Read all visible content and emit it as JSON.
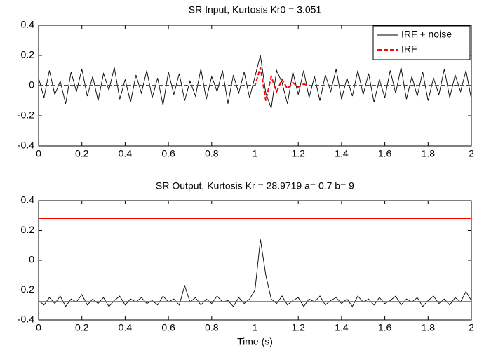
{
  "chart_data": [
    {
      "type": "line",
      "title": "SR Input, Kurtosis Kr0 = 3.051",
      "xlim": [
        0,
        2
      ],
      "xticks": [
        0,
        0.2,
        0.4,
        0.6,
        0.8,
        1,
        1.2,
        1.4,
        1.6,
        1.8,
        2
      ],
      "ylim": [
        -0.4,
        0.4
      ],
      "yticks": [
        -0.4,
        -0.2,
        0,
        0.2,
        0.4
      ],
      "legend": "northeast",
      "x": [
        0,
        0.025,
        0.05,
        0.075,
        0.1,
        0.125,
        0.15,
        0.175,
        0.2,
        0.225,
        0.25,
        0.275,
        0.3,
        0.325,
        0.35,
        0.375,
        0.4,
        0.425,
        0.45,
        0.475,
        0.5,
        0.525,
        0.55,
        0.575,
        0.6,
        0.625,
        0.65,
        0.675,
        0.7,
        0.725,
        0.75,
        0.775,
        0.8,
        0.825,
        0.85,
        0.875,
        0.9,
        0.925,
        0.95,
        0.975,
        1,
        1.025,
        1.05,
        1.075,
        1.1,
        1.125,
        1.15,
        1.175,
        1.2,
        1.225,
        1.25,
        1.275,
        1.3,
        1.325,
        1.35,
        1.375,
        1.4,
        1.425,
        1.45,
        1.475,
        1.5,
        1.525,
        1.55,
        1.575,
        1.6,
        1.625,
        1.65,
        1.675,
        1.7,
        1.725,
        1.75,
        1.775,
        1.8,
        1.825,
        1.85,
        1.875,
        1.9,
        1.925,
        1.95,
        1.975,
        2
      ],
      "series": [
        {
          "name": "IRF + noise",
          "color": "#000000",
          "dash": false,
          "values": [
            0.05,
            -0.08,
            0.1,
            -0.06,
            0.03,
            -0.12,
            0.09,
            -0.04,
            0.11,
            -0.07,
            0.06,
            -0.1,
            0.08,
            -0.03,
            0.12,
            -0.09,
            0.04,
            -0.11,
            0.07,
            -0.05,
            0.1,
            -0.08,
            0.05,
            -0.13,
            0.09,
            -0.06,
            0.08,
            -0.1,
            0.03,
            -0.07,
            0.11,
            -0.09,
            0.06,
            -0.04,
            0.1,
            -0.12,
            0.07,
            -0.05,
            0.09,
            -0.08,
            0.06,
            0.2,
            -0.05,
            -0.15,
            0.1,
            0.02,
            -0.12,
            0.09,
            -0.06,
            0.1,
            -0.08,
            0.06,
            -0.1,
            0.07,
            -0.04,
            0.11,
            -0.09,
            0.05,
            -0.07,
            0.1,
            -0.06,
            0.08,
            -0.11,
            0.04,
            -0.08,
            0.1,
            -0.05,
            0.12,
            -0.09,
            0.06,
            -0.07,
            0.09,
            -0.1,
            0.05,
            -0.06,
            0.11,
            -0.08,
            0.07,
            -0.04,
            0.1,
            -0.09
          ]
        },
        {
          "name": "IRF",
          "color": "#ff0000",
          "dash": true,
          "values": [
            0,
            0,
            0,
            0,
            0,
            0,
            0,
            0,
            0,
            0,
            0,
            0,
            0,
            0,
            0,
            0,
            0,
            0,
            0,
            0,
            0,
            0,
            0,
            0,
            0,
            0,
            0,
            0,
            0,
            0,
            0,
            0,
            0,
            0,
            0,
            0,
            0,
            0,
            0,
            0,
            0,
            0.12,
            -0.1,
            0.06,
            -0.04,
            0.04,
            -0.02,
            0.02,
            -0.01,
            0.01,
            0,
            0,
            0,
            0,
            0,
            0,
            0,
            0,
            0,
            0,
            0,
            0,
            0,
            0,
            0,
            0,
            0,
            0,
            0,
            0,
            0,
            0,
            0,
            0,
            0,
            0,
            0,
            0,
            0,
            0,
            0
          ]
        }
      ]
    },
    {
      "type": "line",
      "title": "SR Output, Kurtosis Kr = 28.9719    a= 0.7   b= 9",
      "xlabel": "Time (s)",
      "xlim": [
        0,
        2
      ],
      "xticks": [
        0,
        0.2,
        0.4,
        0.6,
        0.8,
        1,
        1.2,
        1.4,
        1.6,
        1.8,
        2
      ],
      "ylim": [
        -0.4,
        0.4
      ],
      "yticks": [
        -0.4,
        -0.2,
        0,
        0.2,
        0.4
      ],
      "x": [
        0,
        0.025,
        0.05,
        0.075,
        0.1,
        0.125,
        0.15,
        0.175,
        0.2,
        0.225,
        0.25,
        0.275,
        0.3,
        0.325,
        0.35,
        0.375,
        0.4,
        0.425,
        0.45,
        0.475,
        0.5,
        0.525,
        0.55,
        0.575,
        0.6,
        0.625,
        0.65,
        0.675,
        0.7,
        0.725,
        0.75,
        0.775,
        0.8,
        0.825,
        0.85,
        0.875,
        0.9,
        0.925,
        0.95,
        0.975,
        1,
        1.025,
        1.05,
        1.075,
        1.1,
        1.125,
        1.15,
        1.175,
        1.2,
        1.225,
        1.25,
        1.275,
        1.3,
        1.325,
        1.35,
        1.375,
        1.4,
        1.425,
        1.45,
        1.475,
        1.5,
        1.525,
        1.55,
        1.575,
        1.6,
        1.625,
        1.65,
        1.675,
        1.7,
        1.725,
        1.75,
        1.775,
        1.8,
        1.825,
        1.85,
        1.875,
        1.9,
        1.925,
        1.95,
        1.975,
        2
      ],
      "series": [
        {
          "color": "#000000",
          "dash": false,
          "values": [
            -0.27,
            -0.3,
            -0.25,
            -0.29,
            -0.24,
            -0.31,
            -0.26,
            -0.28,
            -0.23,
            -0.3,
            -0.26,
            -0.29,
            -0.25,
            -0.31,
            -0.27,
            -0.24,
            -0.3,
            -0.26,
            -0.28,
            -0.25,
            -0.29,
            -0.27,
            -0.3,
            -0.24,
            -0.28,
            -0.26,
            -0.3,
            -0.17,
            -0.28,
            -0.25,
            -0.3,
            -0.26,
            -0.29,
            -0.24,
            -0.28,
            -0.27,
            -0.31,
            -0.25,
            -0.29,
            -0.26,
            -0.2,
            0.14,
            -0.1,
            -0.26,
            -0.29,
            -0.24,
            -0.3,
            -0.27,
            -0.25,
            -0.31,
            -0.26,
            -0.28,
            -0.24,
            -0.3,
            -0.27,
            -0.25,
            -0.29,
            -0.26,
            -0.31,
            -0.24,
            -0.28,
            -0.26,
            -0.3,
            -0.25,
            -0.29,
            -0.27,
            -0.24,
            -0.3,
            -0.26,
            -0.28,
            -0.25,
            -0.31,
            -0.27,
            -0.24,
            -0.29,
            -0.26,
            -0.3,
            -0.25,
            -0.28,
            -0.21,
            -0.27
          ]
        },
        {
          "color": "#ff0000",
          "dash": false,
          "x": [
            0,
            2
          ],
          "values": [
            0.28,
            0.28
          ]
        },
        {
          "color": "#00cc00",
          "dash": false,
          "x": [
            0,
            2
          ],
          "values": [
            -0.275,
            -0.275
          ]
        }
      ]
    }
  ]
}
